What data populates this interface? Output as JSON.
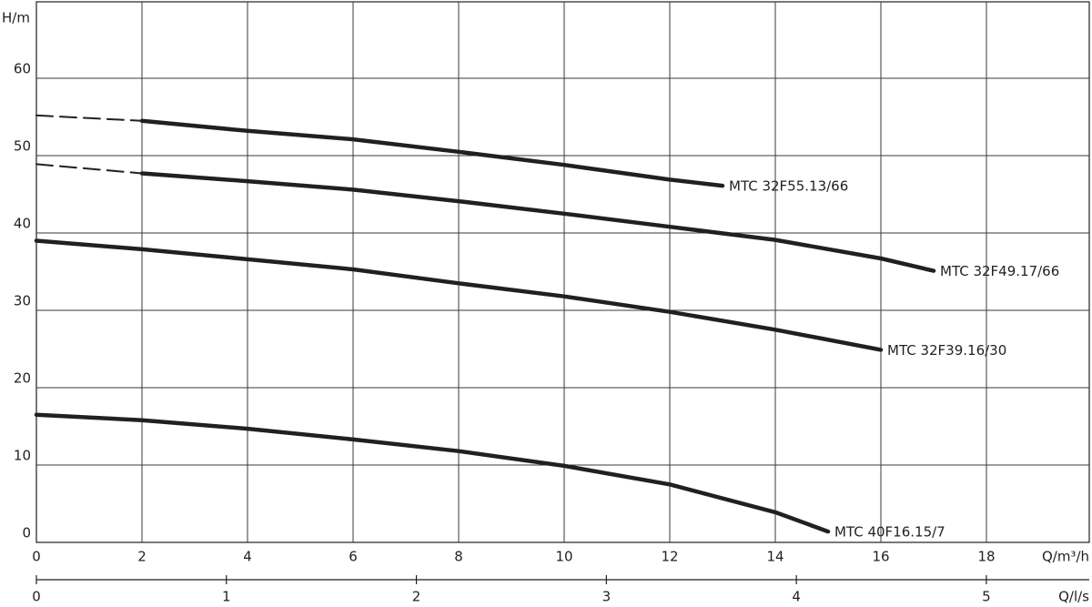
{
  "chart_data": {
    "type": "line",
    "y_label": "H/m",
    "x_label": "Q/m³/h",
    "x2_label": "Q/l/s",
    "xlim": [
      0,
      20
    ],
    "xticks": [
      0,
      2,
      4,
      6,
      8,
      10,
      12,
      14,
      16,
      18
    ],
    "ylim": [
      0,
      70
    ],
    "yticks": [
      0,
      10,
      20,
      30,
      40,
      50,
      60
    ],
    "x2lim": [
      0,
      5.556
    ],
    "x2ticks": [
      0,
      1,
      2,
      3,
      4,
      5
    ],
    "grid": true,
    "series": [
      {
        "name": "MTC 32F55.13/66",
        "color": "#231f20",
        "dashed_x_max": 2,
        "x": [
          0,
          2,
          4,
          6,
          8,
          10,
          12,
          13
        ],
        "values": [
          55.2,
          54.5,
          53.2,
          52.1,
          50.5,
          48.8,
          46.9,
          46.1
        ]
      },
      {
        "name": "MTC 32F49.17/66",
        "color": "#231f20",
        "dashed_x_max": 2,
        "x": [
          0,
          2,
          4,
          6,
          8,
          10,
          12,
          14,
          16,
          17
        ],
        "values": [
          48.9,
          47.7,
          46.7,
          45.6,
          44.1,
          42.5,
          40.8,
          39.1,
          36.7,
          35.1
        ]
      },
      {
        "name": "MTC 32F39.16/30",
        "color": "#231f20",
        "x": [
          0,
          2,
          4,
          6,
          8,
          10,
          12,
          14,
          16
        ],
        "values": [
          39.0,
          37.9,
          36.6,
          35.3,
          33.5,
          31.8,
          29.8,
          27.5,
          24.9
        ]
      },
      {
        "name": "MTC 40F16.15/7",
        "color": "#231f20",
        "x": [
          0,
          2,
          4,
          6,
          8,
          10,
          12,
          14,
          15
        ],
        "values": [
          16.5,
          15.8,
          14.7,
          13.3,
          11.8,
          9.9,
          7.5,
          3.9,
          1.4
        ]
      }
    ]
  }
}
